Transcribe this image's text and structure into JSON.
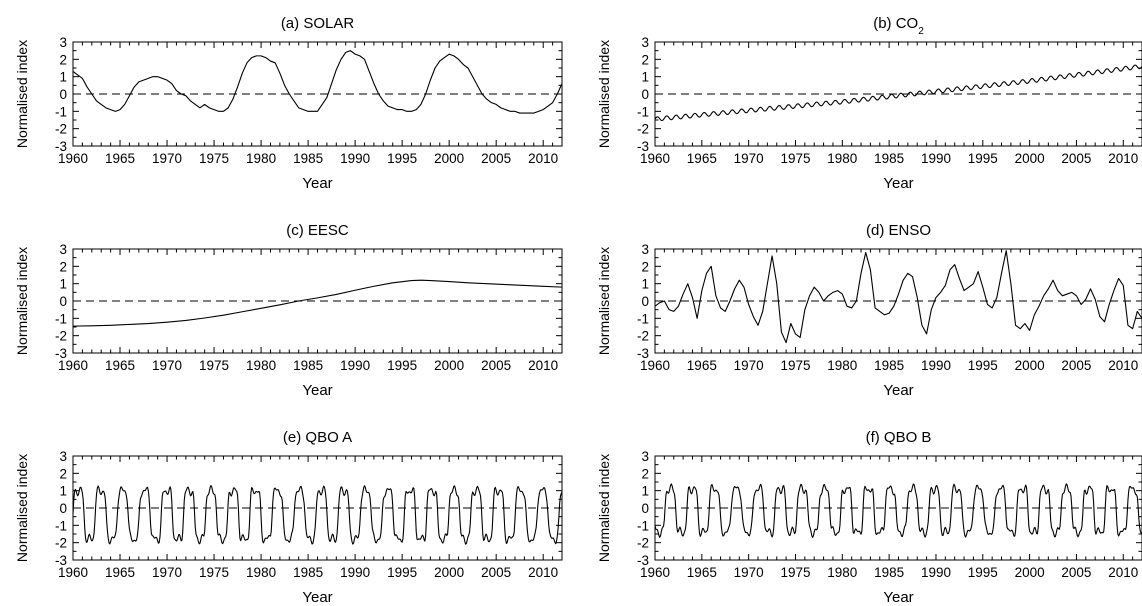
{
  "chart_data": [
    {
      "type": "line",
      "title": "(a) SOLAR",
      "xlabel": "Year",
      "ylabel": "Normalised index",
      "xlim": [
        1960,
        2012
      ],
      "ylim": [
        -3,
        3
      ],
      "xticks": [
        "1960",
        "1965",
        "1970",
        "1975",
        "1980",
        "1985",
        "1990",
        "1995",
        "2000",
        "2005",
        "2010"
      ],
      "yticks": [
        "3",
        "2",
        "1",
        "0",
        "-1",
        "-2",
        "-3"
      ],
      "grid": false,
      "zero_line": "dashed",
      "series": [
        {
          "x": [
            1960,
            1960.5,
            1961,
            1961.5,
            1962,
            1962.5,
            1963,
            1963.5,
            1964,
            1964.5,
            1965,
            1965.5,
            1966,
            1966.5,
            1967,
            1967.5,
            1968,
            1968.5,
            1969,
            1969.5,
            1970,
            1970.5,
            1971,
            1971.5,
            1972,
            1972.5,
            1973,
            1973.5,
            1974,
            1974.5,
            1975,
            1975.5,
            1976,
            1976.5,
            1977,
            1977.5,
            1978,
            1978.5,
            1979,
            1979.5,
            1980,
            1980.5,
            1981,
            1981.5,
            1982,
            1982.5,
            1983,
            1983.5,
            1984,
            1984.5,
            1985,
            1985.5,
            1986,
            1986.5,
            1987,
            1987.5,
            1988,
            1988.5,
            1989,
            1989.5,
            1990,
            1990.5,
            1991,
            1991.5,
            1992,
            1992.5,
            1993,
            1993.5,
            1994,
            1994.5,
            1995,
            1995.5,
            1996,
            1996.5,
            1997,
            1997.5,
            1998,
            1998.5,
            1999,
            1999.5,
            2000,
            2000.5,
            2001,
            2001.5,
            2002,
            2002.5,
            2003,
            2003.5,
            2004,
            2004.5,
            2005,
            2005.5,
            2006,
            2006.5,
            2007,
            2007.5,
            2008,
            2008.5,
            2009,
            2009.5,
            2010,
            2010.5,
            2011,
            2011.5,
            2012
          ],
          "y": [
            1.3,
            1.1,
            0.9,
            0.4,
            0.0,
            -0.4,
            -0.6,
            -0.8,
            -0.9,
            -1.0,
            -0.9,
            -0.6,
            -0.1,
            0.4,
            0.7,
            0.8,
            0.9,
            1.0,
            1.0,
            0.9,
            0.8,
            0.6,
            0.2,
            0.0,
            -0.1,
            -0.4,
            -0.6,
            -0.8,
            -0.6,
            -0.8,
            -0.9,
            -1.0,
            -1.0,
            -0.8,
            -0.3,
            0.4,
            1.2,
            1.8,
            2.1,
            2.2,
            2.2,
            2.1,
            1.9,
            1.8,
            1.2,
            0.5,
            0.0,
            -0.4,
            -0.8,
            -0.9,
            -1.0,
            -1.0,
            -1.0,
            -0.6,
            -0.2,
            0.6,
            1.4,
            2.0,
            2.4,
            2.5,
            2.3,
            2.2,
            2.0,
            1.3,
            0.6,
            0.0,
            -0.4,
            -0.7,
            -0.8,
            -0.9,
            -0.9,
            -1.0,
            -1.0,
            -0.9,
            -0.6,
            0.0,
            0.8,
            1.5,
            1.9,
            2.1,
            2.3,
            2.2,
            2.0,
            1.7,
            1.5,
            1.0,
            0.5,
            0.0,
            -0.3,
            -0.5,
            -0.6,
            -0.8,
            -0.9,
            -1.0,
            -1.0,
            -1.1,
            -1.1,
            -1.1,
            -1.1,
            -1.0,
            -0.9,
            -0.7,
            -0.5,
            0.0,
            0.6
          ]
        }
      ]
    },
    {
      "type": "line",
      "title": "(b) CO",
      "title_subscript": "2",
      "xlabel": "Year",
      "ylabel": "Normalised index",
      "xlim": [
        1960,
        2012
      ],
      "ylim": [
        -3,
        3
      ],
      "xticks": [
        "1960",
        "1965",
        "1970",
        "1975",
        "1980",
        "1985",
        "1990",
        "1995",
        "2000",
        "2005",
        "2010"
      ],
      "yticks": [
        "3",
        "2",
        "1",
        "0",
        "-1",
        "-2",
        "-3"
      ],
      "grid": false,
      "zero_line": "dashed",
      "series": [
        {
          "trend": {
            "x": [
              1960,
              1970,
              1980,
              1990,
              2000,
              2012
            ],
            "y": [
              -1.45,
              -0.95,
              -0.45,
              0.15,
              0.75,
              1.6
            ]
          },
          "seasonal_amplitude": 0.12
        }
      ]
    },
    {
      "type": "line",
      "title": "(c) EESC",
      "xlabel": "Year",
      "ylabel": "Normalised index",
      "xlim": [
        1960,
        2012
      ],
      "ylim": [
        -3,
        3
      ],
      "xticks": [
        "1960",
        "1965",
        "1970",
        "1975",
        "1980",
        "1985",
        "1990",
        "1995",
        "2000",
        "2005",
        "2010"
      ],
      "yticks": [
        "3",
        "2",
        "1",
        "0",
        "-1",
        "-2",
        "-3"
      ],
      "grid": false,
      "zero_line": "dashed",
      "series": [
        {
          "x": [
            1960,
            1962,
            1964,
            1966,
            1968,
            1970,
            1972,
            1974,
            1976,
            1978,
            1980,
            1982,
            1984,
            1986,
            1988,
            1990,
            1992,
            1994,
            1996,
            1997,
            1998,
            2000,
            2002,
            2004,
            2006,
            2008,
            2010,
            2012
          ],
          "y": [
            -1.45,
            -1.43,
            -1.4,
            -1.35,
            -1.3,
            -1.22,
            -1.12,
            -0.98,
            -0.82,
            -0.62,
            -0.42,
            -0.22,
            0.0,
            0.18,
            0.38,
            0.62,
            0.85,
            1.05,
            1.18,
            1.2,
            1.18,
            1.12,
            1.05,
            1.0,
            0.95,
            0.9,
            0.85,
            0.8
          ]
        }
      ]
    },
    {
      "type": "line",
      "title": "(d) ENSO",
      "xlabel": "Year",
      "ylabel": "Normalised index",
      "xlim": [
        1960,
        2012
      ],
      "ylim": [
        -3,
        3
      ],
      "xticks": [
        "1960",
        "1965",
        "1970",
        "1975",
        "1980",
        "1985",
        "1990",
        "1995",
        "2000",
        "2005",
        "2010"
      ],
      "yticks": [
        "3",
        "2",
        "1",
        "0",
        "-1",
        "-2",
        "-3"
      ],
      "grid": false,
      "zero_line": "dashed",
      "series": [
        {
          "x": [
            1960,
            1960.5,
            1961,
            1961.5,
            1962,
            1962.5,
            1963,
            1963.5,
            1964,
            1964.5,
            1965,
            1965.5,
            1966,
            1966.5,
            1967,
            1967.5,
            1968,
            1968.5,
            1969,
            1969.5,
            1970,
            1970.5,
            1971,
            1971.5,
            1972,
            1972.5,
            1973,
            1973.5,
            1974,
            1974.5,
            1975,
            1975.5,
            1976,
            1976.5,
            1977,
            1977.5,
            1978,
            1978.5,
            1979,
            1979.5,
            1980,
            1980.5,
            1981,
            1981.5,
            1982,
            1982.5,
            1983,
            1983.5,
            1984,
            1984.5,
            1985,
            1985.5,
            1986,
            1986.5,
            1987,
            1987.5,
            1988,
            1988.5,
            1989,
            1989.5,
            1990,
            1990.5,
            1991,
            1991.5,
            1992,
            1992.5,
            1993,
            1993.5,
            1994,
            1994.5,
            1995,
            1995.5,
            1996,
            1996.5,
            1997,
            1997.5,
            1998,
            1998.5,
            1999,
            1999.5,
            2000,
            2000.5,
            2001,
            2001.5,
            2002,
            2002.5,
            2003,
            2003.5,
            2004,
            2004.5,
            2005,
            2005.5,
            2006,
            2006.5,
            2007,
            2007.5,
            2008,
            2008.5,
            2009,
            2009.5,
            2010,
            2010.5,
            2011,
            2011.5,
            2012
          ],
          "y": [
            -0.3,
            -0.1,
            0.0,
            -0.5,
            -0.6,
            -0.3,
            0.4,
            1.0,
            0.2,
            -1.0,
            0.6,
            1.6,
            2.0,
            0.3,
            -0.4,
            -0.6,
            0.0,
            0.7,
            1.2,
            0.8,
            -0.2,
            -0.9,
            -1.4,
            -0.6,
            1.0,
            2.6,
            1.0,
            -1.8,
            -2.4,
            -1.3,
            -1.9,
            -2.1,
            -0.5,
            0.3,
            0.8,
            0.5,
            0.0,
            0.3,
            0.5,
            0.6,
            0.4,
            -0.3,
            -0.4,
            0.0,
            1.6,
            2.8,
            1.8,
            -0.4,
            -0.6,
            -0.8,
            -0.7,
            -0.3,
            0.4,
            1.2,
            1.6,
            1.4,
            0.2,
            -1.4,
            -1.9,
            -0.5,
            0.2,
            0.5,
            0.9,
            1.8,
            2.1,
            1.3,
            0.6,
            0.8,
            1.0,
            1.7,
            0.8,
            -0.2,
            -0.4,
            0.2,
            1.6,
            2.9,
            1.0,
            -1.4,
            -1.6,
            -1.3,
            -1.7,
            -0.8,
            -0.3,
            0.3,
            0.7,
            1.2,
            0.6,
            0.3,
            0.4,
            0.5,
            0.3,
            -0.2,
            0.1,
            0.7,
            0.1,
            -0.9,
            -1.2,
            -0.2,
            0.6,
            1.3,
            0.9,
            -1.4,
            -1.6,
            -0.6,
            -1.0
          ]
        }
      ]
    },
    {
      "type": "line",
      "title": "(e) QBO A",
      "xlabel": "Year",
      "ylabel": "Normalised index",
      "xlim": [
        1960,
        2012
      ],
      "ylim": [
        -3,
        3
      ],
      "xticks": [
        "1960",
        "1965",
        "1970",
        "1975",
        "1980",
        "1985",
        "1990",
        "1995",
        "2000",
        "2005",
        "2010"
      ],
      "yticks": [
        "3",
        "2",
        "1",
        "0",
        "-1",
        "-2",
        "-3"
      ],
      "grid": false,
      "zero_line": "dashed",
      "series": [
        {
          "oscillation": {
            "start": 1960,
            "end": 2012,
            "period_years": 2.35,
            "high": 1.0,
            "low": -1.8,
            "phase": 0.0
          }
        }
      ]
    },
    {
      "type": "line",
      "title": "(f) QBO B",
      "xlabel": "Year",
      "ylabel": "Normalised index",
      "xlim": [
        1960,
        2012
      ],
      "ylim": [
        -3,
        3
      ],
      "xticks": [
        "1960",
        "1965",
        "1970",
        "1975",
        "1980",
        "1985",
        "1990",
        "1995",
        "2000",
        "2005",
        "2010"
      ],
      "yticks": [
        "3",
        "2",
        "1",
        "0",
        "-1",
        "-2",
        "-3"
      ],
      "grid": false,
      "zero_line": "dashed",
      "series": [
        {
          "oscillation": {
            "start": 1960,
            "end": 2012,
            "period_years": 2.35,
            "high": 1.1,
            "low": -1.4,
            "phase": 0.55
          }
        }
      ]
    }
  ]
}
